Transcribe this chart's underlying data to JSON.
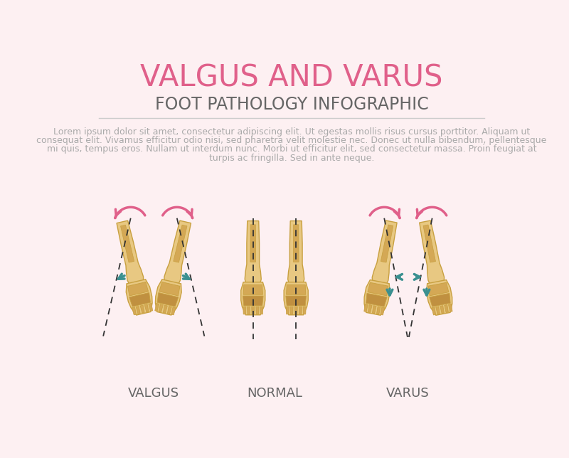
{
  "bg_color": "#fdf0f2",
  "title": "VALGUS AND VARUS",
  "title_color": "#e0608a",
  "title_fontsize": 30,
  "subtitle": "FOOT PATHOLOGY INFOGRAPHIC",
  "subtitle_color": "#666666",
  "subtitle_fontsize": 17,
  "lorem_line1": "Lorem ipsum dolor sit amet, consectetur adipiscing elit. Ut egestas mollis risus cursus porttitor. Aliquam ut",
  "lorem_line2": "consequat elit. Vivamus efficitur odio nisi, sed pharetra velit molestie nec. Donec ut nulla bibendum, pellentesque",
  "lorem_line3": "mi quis, tempus eros. Nullam ut interdum nunc. Morbi ut efficitur elit, sed consectetur massa. Proin feugiat at",
  "lorem_line4": "turpis ac fringilla. Sed in ante neque.",
  "lorem_color": "#aaaaaa",
  "lorem_fontsize": 9,
  "label_valgus": "VALGUS",
  "label_normal": "NORMAL",
  "label_varus": "VARUS",
  "label_color": "#666666",
  "label_fontsize": 13,
  "bone_fill": "#e8c882",
  "bone_edge": "#c8a040",
  "bone_inner": "#d4a855",
  "bone_inner2": "#c09040",
  "arrow_pink": "#e0608a",
  "arrow_teal": "#3a9090",
  "dashed_color": "#333333",
  "line_color": "#cccccc"
}
